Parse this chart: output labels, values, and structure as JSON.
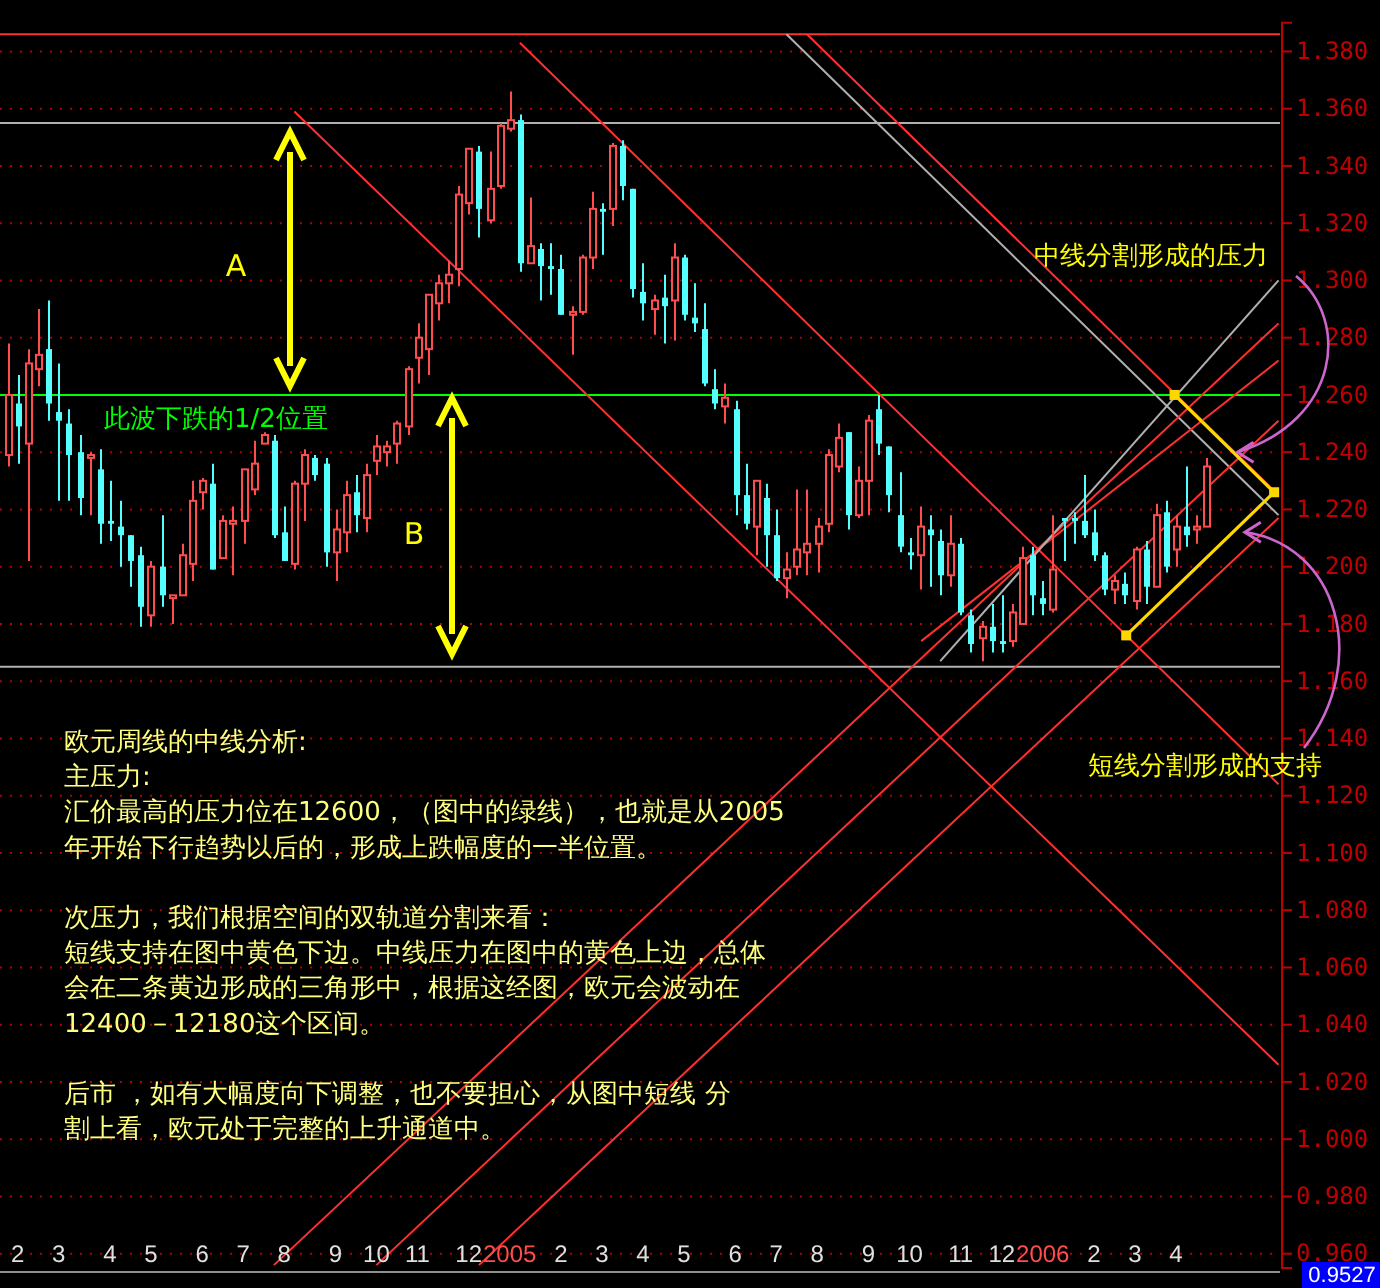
{
  "chart_data": {
    "type": "candlestick",
    "x": [
      "2004-01-26",
      "2004-02-02",
      "2004-02-09",
      "2004-02-16",
      "2004-02-23",
      "2004-03-01",
      "2004-03-08",
      "2004-03-15",
      "2004-03-22",
      "2004-03-29",
      "2004-04-05",
      "2004-04-12",
      "2004-04-19",
      "2004-04-26",
      "2004-05-03",
      "2004-05-10",
      "2004-05-17",
      "2004-05-24",
      "2004-05-31",
      "2004-06-07",
      "2004-06-14",
      "2004-06-21",
      "2004-06-28",
      "2004-07-05",
      "2004-07-12",
      "2004-07-19",
      "2004-07-26",
      "2004-08-02",
      "2004-08-09",
      "2004-08-16",
      "2004-08-23",
      "2004-08-30",
      "2004-09-06",
      "2004-09-13",
      "2004-09-20",
      "2004-09-27",
      "2004-10-04",
      "2004-10-11",
      "2004-10-18",
      "2004-10-25",
      "2004-11-01",
      "2004-11-08",
      "2004-11-15",
      "2004-11-22",
      "2004-11-29",
      "2004-12-06",
      "2004-12-13",
      "2004-12-20",
      "2004-12-27",
      "2005-01-03",
      "2005-01-10",
      "2005-01-17",
      "2005-01-24",
      "2005-01-31",
      "2005-02-07",
      "2005-02-14",
      "2005-02-21",
      "2005-02-28",
      "2005-03-07",
      "2005-03-14",
      "2005-03-21",
      "2005-03-28",
      "2005-04-04",
      "2005-04-11",
      "2005-04-18",
      "2005-04-25",
      "2005-05-02",
      "2005-05-09",
      "2005-05-16",
      "2005-05-23",
      "2005-05-30",
      "2005-06-06",
      "2005-06-13",
      "2005-06-20",
      "2005-06-27",
      "2005-07-04",
      "2005-07-11",
      "2005-07-18",
      "2005-07-25",
      "2005-08-01",
      "2005-08-08",
      "2005-08-15",
      "2005-08-22",
      "2005-08-29",
      "2005-09-05",
      "2005-09-12",
      "2005-09-19",
      "2005-09-26",
      "2005-10-03",
      "2005-10-10",
      "2005-10-17",
      "2005-10-24",
      "2005-10-31",
      "2005-11-07",
      "2005-11-14",
      "2005-11-21",
      "2005-11-28",
      "2005-12-05",
      "2005-12-12",
      "2005-12-19",
      "2005-12-26",
      "2006-01-02",
      "2006-01-09",
      "2006-01-16",
      "2006-01-23",
      "2006-01-30",
      "2006-02-06",
      "2006-02-13",
      "2006-02-20",
      "2006-02-27",
      "2006-03-06",
      "2006-03-13",
      "2006-03-20",
      "2006-03-27",
      "2006-04-03",
      "2006-04-10",
      "2006-04-17",
      "2006-04-24"
    ],
    "ohlc": [
      [
        1.239,
        1.278,
        1.235,
        1.26
      ],
      [
        1.257,
        1.267,
        1.236,
        1.249
      ],
      [
        1.243,
        1.276,
        1.202,
        1.271
      ],
      [
        1.269,
        1.29,
        1.263,
        1.274
      ],
      [
        1.276,
        1.293,
        1.251,
        1.257
      ],
      [
        1.254,
        1.271,
        1.223,
        1.251
      ],
      [
        1.25,
        1.255,
        1.223,
        1.239
      ],
      [
        1.24,
        1.246,
        1.218,
        1.224
      ],
      [
        1.238,
        1.24,
        1.218,
        1.239
      ],
      [
        1.234,
        1.241,
        1.208,
        1.215
      ],
      [
        1.216,
        1.23,
        1.209,
        1.215
      ],
      [
        1.214,
        1.223,
        1.2,
        1.211
      ],
      [
        1.211,
        1.211,
        1.193,
        1.202
      ],
      [
        1.204,
        1.207,
        1.179,
        1.186
      ],
      [
        1.183,
        1.202,
        1.179,
        1.2
      ],
      [
        1.2,
        1.218,
        1.186,
        1.19
      ],
      [
        1.189,
        1.19,
        1.18,
        1.19
      ],
      [
        1.19,
        1.208,
        1.19,
        1.204
      ],
      [
        1.201,
        1.23,
        1.195,
        1.223
      ],
      [
        1.226,
        1.231,
        1.22,
        1.23
      ],
      [
        1.229,
        1.236,
        1.199,
        1.199
      ],
      [
        1.203,
        1.218,
        1.203,
        1.216
      ],
      [
        1.215,
        1.221,
        1.197,
        1.216
      ],
      [
        1.216,
        1.234,
        1.208,
        1.234
      ],
      [
        1.227,
        1.244,
        1.225,
        1.236
      ],
      [
        1.243,
        1.247,
        1.243,
        1.246
      ],
      [
        1.244,
        1.246,
        1.21,
        1.211
      ],
      [
        1.212,
        1.221,
        1.202,
        1.202
      ],
      [
        1.201,
        1.23,
        1.199,
        1.229
      ],
      [
        1.229,
        1.241,
        1.216,
        1.239
      ],
      [
        1.238,
        1.239,
        1.23,
        1.232
      ],
      [
        1.236,
        1.238,
        1.2,
        1.205
      ],
      [
        1.205,
        1.22,
        1.195,
        1.213
      ],
      [
        1.212,
        1.23,
        1.205,
        1.225
      ],
      [
        1.226,
        1.232,
        1.212,
        1.218
      ],
      [
        1.217,
        1.236,
        1.212,
        1.232
      ],
      [
        1.237,
        1.246,
        1.232,
        1.242
      ],
      [
        1.24,
        1.244,
        1.235,
        1.242
      ],
      [
        1.243,
        1.251,
        1.236,
        1.25
      ],
      [
        1.249,
        1.27,
        1.246,
        1.269
      ],
      [
        1.273,
        1.285,
        1.264,
        1.28
      ],
      [
        1.276,
        1.295,
        1.267,
        1.295
      ],
      [
        1.292,
        1.302,
        1.286,
        1.299
      ],
      [
        1.299,
        1.307,
        1.292,
        1.302
      ],
      [
        1.304,
        1.333,
        1.298,
        1.33
      ],
      [
        1.327,
        1.346,
        1.323,
        1.346
      ],
      [
        1.345,
        1.347,
        1.315,
        1.325
      ],
      [
        1.321,
        1.345,
        1.32,
        1.332
      ],
      [
        1.333,
        1.355,
        1.332,
        1.354
      ],
      [
        1.353,
        1.366,
        1.352,
        1.356
      ],
      [
        1.356,
        1.358,
        1.303,
        1.306
      ],
      [
        1.306,
        1.329,
        1.306,
        1.312
      ],
      [
        1.311,
        1.313,
        1.293,
        1.305
      ],
      [
        1.305,
        1.313,
        1.295,
        1.304
      ],
      [
        1.304,
        1.309,
        1.288,
        1.288
      ],
      [
        1.288,
        1.291,
        1.274,
        1.289
      ],
      [
        1.289,
        1.309,
        1.288,
        1.308
      ],
      [
        1.308,
        1.331,
        1.304,
        1.325
      ],
      [
        1.325,
        1.327,
        1.309,
        1.324
      ],
      [
        1.325,
        1.348,
        1.319,
        1.347
      ],
      [
        1.347,
        1.349,
        1.328,
        1.333
      ],
      [
        1.332,
        1.332,
        1.294,
        1.297
      ],
      [
        1.296,
        1.306,
        1.286,
        1.292
      ],
      [
        1.29,
        1.295,
        1.281,
        1.293
      ],
      [
        1.294,
        1.302,
        1.278,
        1.291
      ],
      [
        1.293,
        1.313,
        1.279,
        1.308
      ],
      [
        1.308,
        1.309,
        1.286,
        1.288
      ],
      [
        1.287,
        1.299,
        1.282,
        1.285
      ],
      [
        1.283,
        1.292,
        1.263,
        1.264
      ],
      [
        1.262,
        1.269,
        1.255,
        1.257
      ],
      [
        1.256,
        1.264,
        1.25,
        1.259
      ],
      [
        1.255,
        1.258,
        1.218,
        1.225
      ],
      [
        1.225,
        1.236,
        1.213,
        1.215
      ],
      [
        1.214,
        1.23,
        1.204,
        1.23
      ],
      [
        1.224,
        1.229,
        1.2,
        1.211
      ],
      [
        1.211,
        1.22,
        1.195,
        1.196
      ],
      [
        1.196,
        1.205,
        1.189,
        1.199
      ],
      [
        1.2,
        1.227,
        1.197,
        1.206
      ],
      [
        1.205,
        1.227,
        1.197,
        1.208
      ],
      [
        1.208,
        1.217,
        1.198,
        1.214
      ],
      [
        1.215,
        1.241,
        1.212,
        1.239
      ],
      [
        1.235,
        1.25,
        1.233,
        1.245
      ],
      [
        1.247,
        1.247,
        1.213,
        1.218
      ],
      [
        1.218,
        1.235,
        1.217,
        1.23
      ],
      [
        1.23,
        1.253,
        1.218,
        1.251
      ],
      [
        1.255,
        1.26,
        1.239,
        1.243
      ],
      [
        1.242,
        1.242,
        1.219,
        1.225
      ],
      [
        1.218,
        1.233,
        1.205,
        1.207
      ],
      [
        1.205,
        1.21,
        1.199,
        1.204
      ],
      [
        1.204,
        1.221,
        1.192,
        1.214
      ],
      [
        1.213,
        1.218,
        1.193,
        1.211
      ],
      [
        1.209,
        1.213,
        1.19,
        1.197
      ],
      [
        1.197,
        1.218,
        1.193,
        1.208
      ],
      [
        1.208,
        1.21,
        1.183,
        1.184
      ],
      [
        1.183,
        1.185,
        1.17,
        1.173
      ],
      [
        1.175,
        1.181,
        1.167,
        1.179
      ],
      [
        1.179,
        1.187,
        1.17,
        1.174
      ],
      [
        1.174,
        1.19,
        1.17,
        1.173
      ],
      [
        1.174,
        1.187,
        1.172,
        1.184
      ],
      [
        1.18,
        1.207,
        1.18,
        1.203
      ],
      [
        1.204,
        1.207,
        1.183,
        1.19
      ],
      [
        1.189,
        1.195,
        1.183,
        1.187
      ],
      [
        1.185,
        1.218,
        1.184,
        1.199
      ],
      [
        1.217,
        1.217,
        1.202,
        1.216
      ],
      [
        1.217,
        1.219,
        1.208,
        1.216
      ],
      [
        1.216,
        1.232,
        1.21,
        1.211
      ],
      [
        1.212,
        1.22,
        1.202,
        1.204
      ],
      [
        1.204,
        1.205,
        1.19,
        1.192
      ],
      [
        1.192,
        1.197,
        1.187,
        1.195
      ],
      [
        1.194,
        1.198,
        1.187,
        1.19
      ],
      [
        1.188,
        1.207,
        1.185,
        1.206
      ],
      [
        1.206,
        1.209,
        1.187,
        1.193
      ],
      [
        1.193,
        1.222,
        1.193,
        1.218
      ],
      [
        1.219,
        1.223,
        1.198,
        1.2
      ],
      [
        1.206,
        1.218,
        1.2,
        1.214
      ],
      [
        1.214,
        1.235,
        1.207,
        1.211
      ],
      [
        1.213,
        1.218,
        1.208,
        1.214
      ],
      [
        1.214,
        1.238,
        1.214,
        1.235
      ]
    ],
    "series": [
      {
        "type": "line",
        "color": "#ff3030",
        "x": [
          "2004-08-09",
          "2006-06-12"
        ],
        "values": [
          1.359,
          1.026
        ]
      },
      {
        "type": "line",
        "color": "#ff3030",
        "x": [
          "2005-01-10",
          "2006-06-12"
        ],
        "values": [
          1.383,
          1.124
        ]
      },
      {
        "type": "line",
        "color": "#ff3030",
        "x": [
          "2005-07-25",
          "2006-06-12"
        ],
        "values": [
          1.386,
          1.225
        ]
      },
      {
        "type": "line",
        "color": "#b0b0b0",
        "x": [
          "2005-07-11",
          "2006-06-12"
        ],
        "values": [
          1.386,
          1.218
        ]
      },
      {
        "type": "line",
        "color": "#ff3030",
        "x": [
          "2004-07-26",
          "2006-06-12"
        ],
        "values": [
          0.956,
          1.285
        ]
      },
      {
        "type": "line",
        "color": "#ff3030",
        "x": [
          "2004-10-04",
          "2006-06-12"
        ],
        "values": [
          0.956,
          1.251
        ]
      },
      {
        "type": "line",
        "color": "#ff3030",
        "x": [
          "2004-12-13",
          "2006-06-12"
        ],
        "values": [
          0.956,
          1.217
        ]
      },
      {
        "type": "line",
        "color": "#ff3030",
        "x": [
          "2005-10-11",
          "2006-06-12"
        ],
        "values": [
          1.174,
          1.272
        ]
      },
      {
        "type": "line",
        "color": "#b0b0b0",
        "x": [
          "2005-10-24",
          "2006-06-12"
        ],
        "values": [
          1.167,
          1.3
        ]
      },
      {
        "type": "line",
        "color": "#ffd700",
        "marker": "square",
        "x": [
          "2006-04-02",
          "2006-06-09",
          "2006-02-28"
        ],
        "values": [
          1.26,
          1.226,
          1.176
        ]
      }
    ],
    "ref_lines": [
      {
        "axis": "y",
        "value": 1.386,
        "color": "#ff3030"
      },
      {
        "axis": "y",
        "value": 1.355,
        "color": "#b0b0b0"
      },
      {
        "axis": "y",
        "value": 1.26,
        "color": "#00ff00",
        "label": "此波下跌的1/2位置"
      },
      {
        "axis": "y",
        "value": 1.165,
        "color": "#b0b0b0"
      }
    ],
    "annotations": [
      "A",
      "B",
      {
        "text": "中线分割形成的压力",
        "x": "2006-05-15",
        "y": 1.24
      },
      {
        "text": "短线分割形成的支持",
        "x": "2006-05-20",
        "y": 1.212
      },
      "0.9527",
      "欧元周线的中线分析:",
      "主压力:",
      "汇价最高的压力位在12600，（图中的绿线），也就是从2005",
      "年开始下行趋势以后的，形成上跌幅度的一半位置。",
      "次压力，我们根据空间的双轨道分割来看：",
      "短线支持在图中黄色下边。中线压力在图中的黄色上边，总体",
      "会在二条黄边形成的三角形中，根据这经图，欧元会波动在",
      "12400－12180这个区间。",
      "后市  ，如有大幅度向下调整，也不要担心，从图中短线  分",
      "割上看，欧元处于完整的上升通道中。"
    ],
    "xlim": [
      "2004-01-21",
      "2006-06-13"
    ],
    "xticks": [
      {
        "value": "2004-02-02",
        "label": "2"
      },
      {
        "value": "2004-03-01",
        "label": "3"
      },
      {
        "value": "2004-04-05",
        "label": "4"
      },
      {
        "value": "2004-05-03",
        "label": "5"
      },
      {
        "value": "2004-06-07",
        "label": "6"
      },
      {
        "value": "2004-07-05",
        "label": "7"
      },
      {
        "value": "2004-08-02",
        "label": "8"
      },
      {
        "value": "2004-09-06",
        "label": "9"
      },
      {
        "value": "2004-10-04",
        "label": "10"
      },
      {
        "value": "2004-11-01",
        "label": "11"
      },
      {
        "value": "2004-12-06",
        "label": "12"
      },
      {
        "value": "2005-01-03",
        "label": "2005"
      },
      {
        "value": "2005-02-07",
        "label": "2"
      },
      {
        "value": "2005-03-07",
        "label": "3"
      },
      {
        "value": "2005-04-04",
        "label": "4"
      },
      {
        "value": "2005-05-02",
        "label": "5"
      },
      {
        "value": "2005-06-06",
        "label": "6"
      },
      {
        "value": "2005-07-04",
        "label": "7"
      },
      {
        "value": "2005-08-01",
        "label": "8"
      },
      {
        "value": "2005-09-05",
        "label": "9"
      },
      {
        "value": "2005-10-03",
        "label": "10"
      },
      {
        "value": "2005-11-07",
        "label": "11"
      },
      {
        "value": "2005-12-05",
        "label": "12"
      },
      {
        "value": "2006-01-02",
        "label": "2006"
      },
      {
        "value": "2006-02-06",
        "label": "2"
      },
      {
        "value": "2006-03-06",
        "label": "3"
      },
      {
        "value": "2006-04-03",
        "label": "4"
      }
    ],
    "ylim": [
      0.955,
      1.39
    ],
    "yticks": [
      {
        "value": 0.96,
        "label": "0.960"
      },
      {
        "value": 0.98,
        "label": "0.980"
      },
      {
        "value": 1.0,
        "label": "1.000"
      },
      {
        "value": 1.02,
        "label": "1.020"
      },
      {
        "value": 1.04,
        "label": "1.040"
      },
      {
        "value": 1.06,
        "label": "1.060"
      },
      {
        "value": 1.08,
        "label": "1.080"
      },
      {
        "value": 1.1,
        "label": "1.100"
      },
      {
        "value": 1.12,
        "label": "1.120"
      },
      {
        "value": 1.14,
        "label": "1.140"
      },
      {
        "value": 1.16,
        "label": "1.160"
      },
      {
        "value": 1.18,
        "label": "1.180"
      },
      {
        "value": 1.2,
        "label": "1.200"
      },
      {
        "value": 1.22,
        "label": "1.220"
      },
      {
        "value": 1.24,
        "label": "1.240"
      },
      {
        "value": 1.26,
        "label": "1.260"
      },
      {
        "value": 1.28,
        "label": "1.280"
      },
      {
        "value": 1.3,
        "label": "1.300"
      },
      {
        "value": 1.32,
        "label": "1.320"
      },
      {
        "value": 1.34,
        "label": "1.340"
      },
      {
        "value": 1.36,
        "label": "1.360"
      },
      {
        "value": 1.38,
        "label": "1.380"
      }
    ],
    "grid": "y"
  }
}
